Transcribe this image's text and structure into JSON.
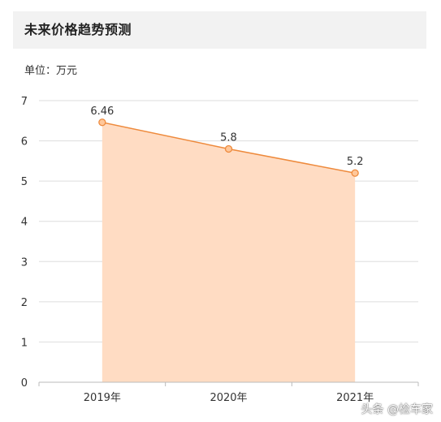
{
  "header": {
    "title": "未来价格趋势预测"
  },
  "unit_label": "单位：万元",
  "watermark": "头条 @检车家",
  "colors": {
    "line": "#ee8a3c",
    "area": "#ffdcc3",
    "grid": "#dddddd",
    "axis": "#bbbbbb",
    "text": "#333333",
    "point_fill": "#ffc79a"
  },
  "chart_data": {
    "type": "area",
    "categories": [
      "2019年",
      "2020年",
      "2021年"
    ],
    "series": [
      {
        "values": [
          6.46,
          5.8,
          5.2
        ],
        "data_labels": [
          "6.46",
          "5.8",
          "5.2"
        ]
      }
    ],
    "y_ticks": [
      "0",
      "1",
      "2",
      "3",
      "4",
      "5",
      "6",
      "7"
    ],
    "ylim": [
      0,
      7
    ],
    "grid": true,
    "legend": "none"
  }
}
